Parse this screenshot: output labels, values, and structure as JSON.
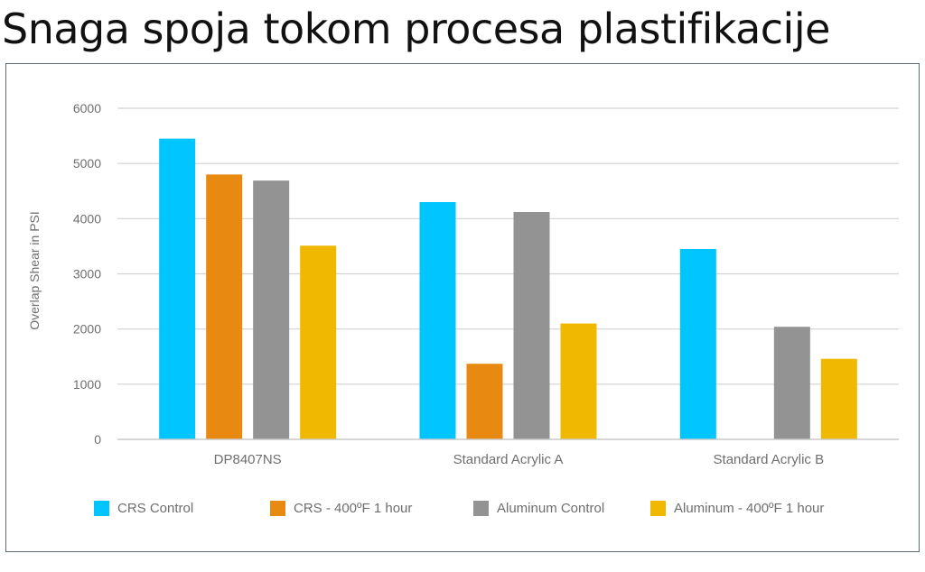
{
  "page": {
    "title": "Snaga spoja tokom procesa plastifikacije"
  },
  "chart_data": {
    "type": "bar",
    "title": "",
    "xlabel": "",
    "ylabel": "Overlap Shear in PSI",
    "ylim": [
      0,
      6000
    ],
    "yticks": [
      0,
      1000,
      2000,
      3000,
      4000,
      5000,
      6000
    ],
    "grid": true,
    "legend_position": "bottom",
    "categories": [
      "DP8407NS",
      "Standard Acrylic A",
      "Standard Acrylic B"
    ],
    "series": [
      {
        "name": "CRS Control",
        "color": "#00c5ff",
        "values": [
          5450,
          4300,
          3450
        ]
      },
      {
        "name": "CRS - 400ºF 1 hour",
        "color": "#e88a12",
        "values": [
          4800,
          1370,
          null
        ]
      },
      {
        "name": "Aluminum Control",
        "color": "#939393",
        "values": [
          4690,
          4120,
          2040
        ]
      },
      {
        "name": "Aluminum - 400ºF 1 hour",
        "color": "#f0b800",
        "values": [
          3510,
          2100,
          1460
        ]
      }
    ]
  }
}
